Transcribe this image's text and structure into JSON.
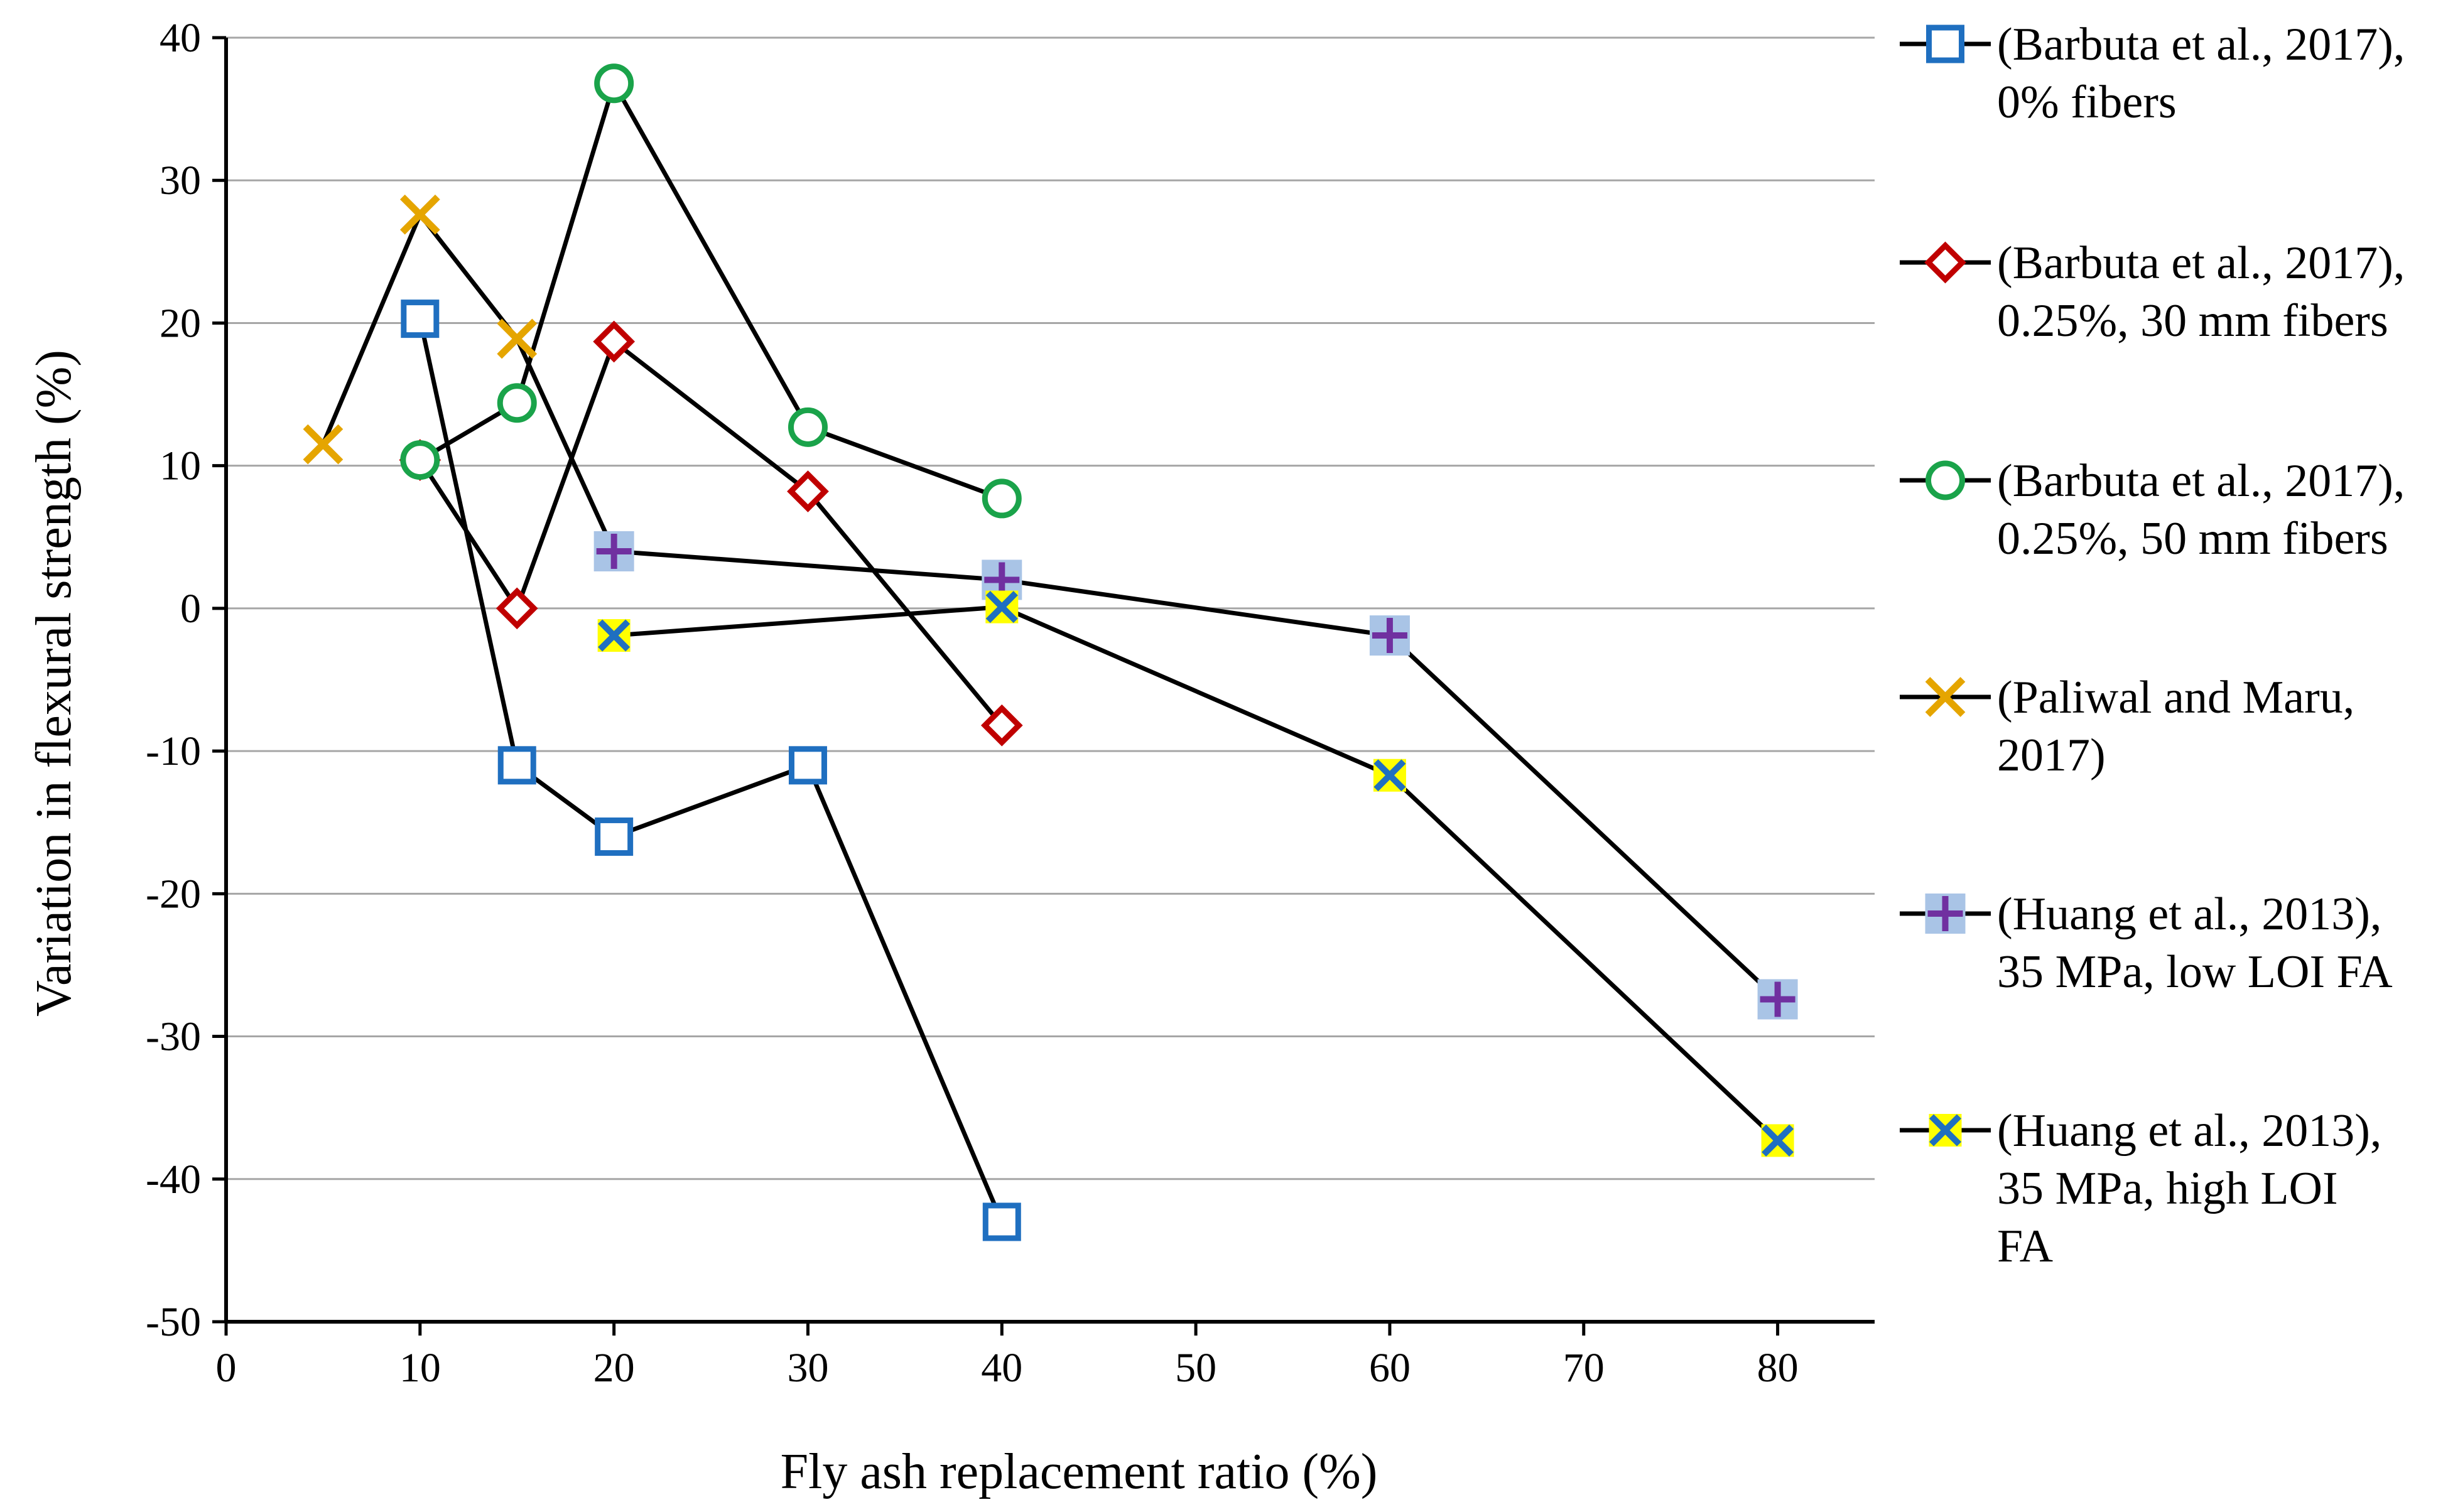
{
  "chart_data": {
    "type": "scatter",
    "title": "",
    "xlabel": "Fly ash replacement ratio (%)",
    "ylabel": "Variation in flexural strength (%)",
    "xlim": [
      0,
      85
    ],
    "ylim": [
      -50,
      40
    ],
    "x_ticks": [
      0,
      10,
      20,
      30,
      40,
      50,
      60,
      70,
      80
    ],
    "y_ticks": [
      40,
      30,
      20,
      10,
      0,
      -10,
      -20,
      -30,
      -40,
      -50
    ],
    "grid": "horizontal",
    "legend_position": "right",
    "lines": "straight black lines connecting markers",
    "series": [
      {
        "name": "(Barbuta et al., 2017), 0% fibers",
        "legend_lines": [
          "(Barbuta et al., 2017),",
          "0% fibers"
        ],
        "marker": "square",
        "marker_stroke": "#1f6fc0",
        "marker_fill": "none",
        "x": [
          10,
          15,
          20,
          30,
          40
        ],
        "y": [
          20.3,
          -11,
          -16,
          -11,
          -43
        ]
      },
      {
        "name": "(Barbuta et al., 2017), 0.25%, 30 mm fibers",
        "legend_lines": [
          "(Barbuta et al., 2017),",
          "0.25%, 30 mm fibers"
        ],
        "marker": "diamond",
        "marker_stroke": "#c00000",
        "marker_fill": "none",
        "x": [
          10,
          15,
          20,
          30,
          40
        ],
        "y": [
          10.4,
          0,
          18.7,
          8.2,
          -8.2
        ]
      },
      {
        "name": "(Barbuta et al., 2017), 0.25%, 50 mm fibers",
        "legend_lines": [
          "(Barbuta et al., 2017),",
          "0.25%, 50 mm fibers"
        ],
        "marker": "circle",
        "marker_stroke": "#1aa34a",
        "marker_fill": "none",
        "x": [
          10,
          15,
          20,
          30,
          40
        ],
        "y": [
          10.4,
          14.4,
          36.8,
          12.7,
          7.7
        ]
      },
      {
        "name": "(Paliwal and Maru, 2017)",
        "legend_lines": [
          "(Paliwal and Maru,",
          "2017)"
        ],
        "marker": "x",
        "marker_stroke": "#e5a500",
        "marker_fill": "none",
        "x": [
          5,
          10,
          15,
          20
        ],
        "y": [
          11.5,
          27.6,
          18.9,
          4
        ]
      },
      {
        "name": "(Huang et al., 2013), 35 MPa, low LOI FA",
        "legend_lines": [
          "(Huang et al., 2013),",
          "35 MPa, low LOI FA"
        ],
        "marker": "plus-on-square",
        "marker_stroke": "#7030a0",
        "marker_fill": "#a9c4e6",
        "x": [
          20,
          40,
          60,
          80
        ],
        "y": [
          4,
          2,
          -1.9,
          -27.4
        ]
      },
      {
        "name": "(Huang et al., 2013), 35 MPa, high LOI FA",
        "legend_lines": [
          "(Huang et al., 2013),",
          "35 MPa, high LOI",
          "FA"
        ],
        "marker": "x-on-square",
        "marker_stroke": "#1f6fc0",
        "marker_fill": "#ffff00",
        "x": [
          20,
          40,
          60,
          80
        ],
        "y": [
          -1.9,
          0.1,
          -11.7,
          -37.3
        ]
      }
    ]
  }
}
